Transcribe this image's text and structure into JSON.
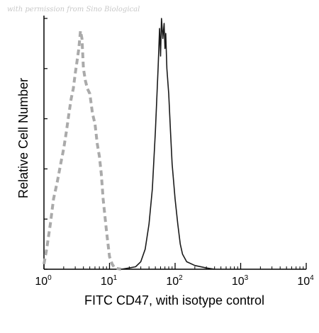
{
  "watermark": "with permission from Sino Biological",
  "chart_data": {
    "type": "line",
    "xlabel": "FITC CD47, with isotype control",
    "ylabel": "Relative Cell Number",
    "xscale": "log",
    "xlim": [
      1,
      10000
    ],
    "ylim": [
      0,
      100
    ],
    "x_ticks": [
      {
        "base": "10",
        "exp": "0"
      },
      {
        "base": "10",
        "exp": "1"
      },
      {
        "base": "10",
        "exp": "2"
      },
      {
        "base": "10",
        "exp": "3"
      },
      {
        "base": "10",
        "exp": "4"
      }
    ],
    "y_tick_values": [
      0,
      20,
      40,
      60,
      80,
      100
    ],
    "grid": false,
    "series": [
      {
        "style": "dashed",
        "color": "#aaaaaa",
        "points": [
          [
            1.0,
            2
          ],
          [
            1.1,
            8
          ],
          [
            1.25,
            18
          ],
          [
            1.4,
            28
          ],
          [
            1.6,
            35
          ],
          [
            1.8,
            42
          ],
          [
            2.0,
            48
          ],
          [
            2.2,
            55
          ],
          [
            2.4,
            62
          ],
          [
            2.6,
            68
          ],
          [
            2.8,
            72
          ],
          [
            3.0,
            78
          ],
          [
            3.2,
            83
          ],
          [
            3.4,
            88
          ],
          [
            3.6,
            95
          ],
          [
            3.8,
            92
          ],
          [
            4.0,
            80
          ],
          [
            4.3,
            75
          ],
          [
            4.6,
            72
          ],
          [
            5.0,
            70
          ],
          [
            5.5,
            62
          ],
          [
            6.0,
            58
          ],
          [
            6.5,
            50
          ],
          [
            7.0,
            45
          ],
          [
            7.5,
            38
          ],
          [
            8.0,
            28
          ],
          [
            9.0,
            15
          ],
          [
            10.0,
            5
          ],
          [
            11.0,
            2
          ],
          [
            12.0,
            0.5
          ],
          [
            15.0,
            0
          ]
        ]
      },
      {
        "style": "solid",
        "color": "#1a1a1a",
        "points": [
          [
            15,
            0
          ],
          [
            20,
            0.5
          ],
          [
            25,
            1
          ],
          [
            30,
            3
          ],
          [
            35,
            8
          ],
          [
            40,
            18
          ],
          [
            45,
            32
          ],
          [
            50,
            55
          ],
          [
            55,
            80
          ],
          [
            58,
            96
          ],
          [
            60,
            85
          ],
          [
            62,
            100
          ],
          [
            65,
            92
          ],
          [
            68,
            98
          ],
          [
            70,
            88
          ],
          [
            72,
            94
          ],
          [
            75,
            80
          ],
          [
            80,
            70
          ],
          [
            85,
            55
          ],
          [
            90,
            42
          ],
          [
            100,
            28
          ],
          [
            110,
            18
          ],
          [
            120,
            10
          ],
          [
            130,
            6
          ],
          [
            150,
            3
          ],
          [
            200,
            1.5
          ],
          [
            300,
            0.5
          ],
          [
            400,
            0
          ]
        ]
      }
    ]
  }
}
